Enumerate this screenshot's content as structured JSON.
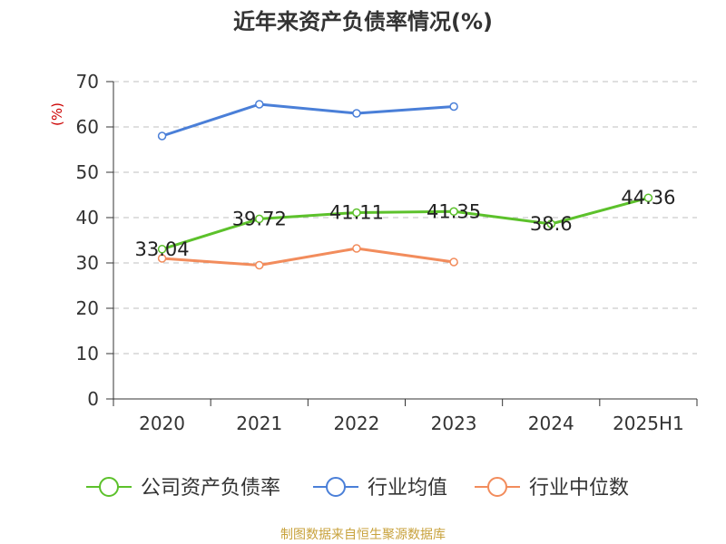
{
  "chart_data": {
    "type": "line",
    "title": "近年来资产负债率情况(%)",
    "ylabel": "(%)",
    "xlabel": "",
    "categories": [
      "2020",
      "2021",
      "2022",
      "2023",
      "2024",
      "2025H1"
    ],
    "ylim": [
      0,
      70
    ],
    "yticks": [
      0,
      10,
      20,
      30,
      40,
      50,
      60,
      70
    ],
    "grid": true,
    "legend_position": "bottom",
    "series": [
      {
        "name": "公司资产负债率",
        "color": "#5cc12b",
        "values": [
          33.04,
          39.72,
          41.11,
          41.35,
          38.6,
          44.36
        ],
        "labels": [
          "33.04",
          "39.72",
          "41.11",
          "41.35",
          "38.6",
          "44.36"
        ]
      },
      {
        "name": "行业均值",
        "color": "#4a7fd8",
        "values": [
          58.0,
          65.0,
          63.0,
          64.5,
          null,
          null
        ]
      },
      {
        "name": "行业中位数",
        "color": "#f28c5c",
        "values": [
          31.0,
          29.5,
          33.2,
          30.2,
          null,
          null
        ]
      }
    ]
  },
  "footer": {
    "source": "制图数据来自恒生聚源数据库",
    "color": "#c8a23c"
  }
}
